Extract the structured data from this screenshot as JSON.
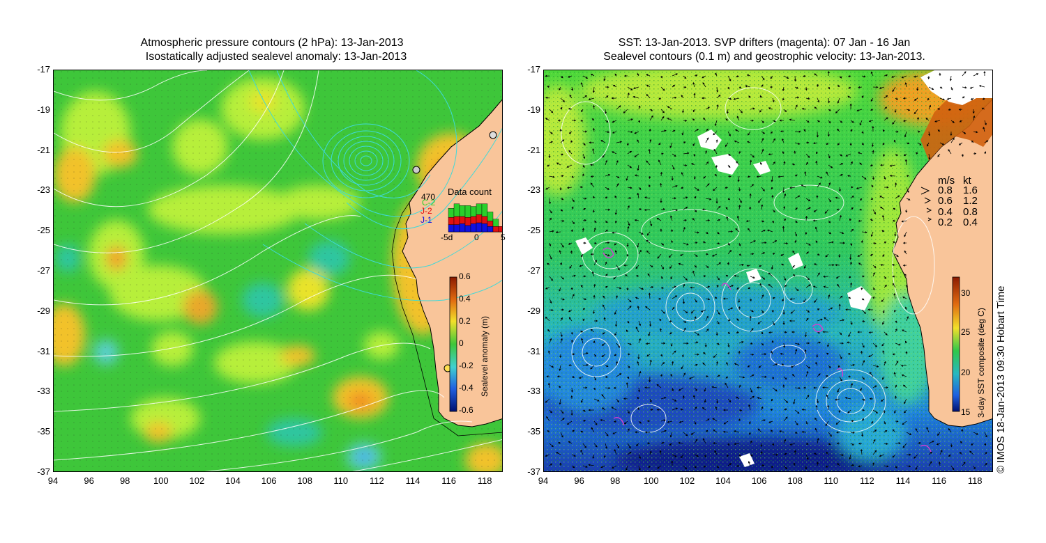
{
  "left_panel": {
    "title_line1": "Atmospheric pressure contours (2 hPa): 13-Jan-2013",
    "title_line2": "Isostatically adjusted sealevel anomaly: 13-Jan-2013",
    "colorbar": {
      "label": "Sealevel anomaly (m)",
      "ticks": [
        "0.6",
        "0.4",
        "0.2",
        "0",
        "-0.2",
        "-0.4",
        "-0.6"
      ],
      "range": [
        -0.6,
        0.6
      ]
    },
    "data_count": {
      "title": "Data count",
      "count": "470",
      "legend": [
        {
          "label": "C-2",
          "color": "#2ad02a"
        },
        {
          "label": "J-2",
          "color": "#e01010"
        },
        {
          "label": "J-1",
          "color": "#1010e0"
        }
      ],
      "axis_ticks": [
        "-5d",
        "0",
        "5"
      ],
      "days": [
        -5,
        -4,
        -3,
        -2,
        -1,
        0,
        1,
        2,
        3,
        4
      ],
      "j1": [
        8,
        8,
        9,
        7,
        9,
        10,
        9,
        6,
        0,
        0
      ],
      "j2": [
        8,
        9,
        8,
        9,
        8,
        9,
        8,
        6,
        6,
        6
      ],
      "c2": [
        10,
        14,
        12,
        13,
        11,
        12,
        14,
        10,
        8,
        0
      ]
    }
  },
  "right_panel": {
    "title_line1": "SST: 13-Jan-2013. SVP drifters (magenta): 07 Jan - 16 Jan",
    "title_line2": "Sealevel contours (0.1 m) and geostrophic velocity: 13-Jan-2013.",
    "colorbar": {
      "label": "3-day SST composite (deg C)",
      "ticks": [
        "30",
        "25",
        "20",
        "15"
      ],
      "range": [
        15,
        32
      ]
    },
    "velocity_legend": {
      "header_ms": "m/s",
      "header_kt": "kt",
      "rows": [
        {
          "ms": "0.8",
          "kt": "1.6"
        },
        {
          "ms": "0.6",
          "kt": "1.2"
        },
        {
          "ms": "0.4",
          "kt": "0.8"
        },
        {
          "ms": "0.2",
          "kt": "0.4"
        }
      ]
    }
  },
  "axes": {
    "y_ticks": [
      "-17",
      "-19",
      "-21",
      "-23",
      "-25",
      "-27",
      "-29",
      "-31",
      "-33",
      "-35",
      "-37"
    ],
    "x_ticks": [
      "94",
      "96",
      "98",
      "100",
      "102",
      "104",
      "106",
      "108",
      "110",
      "112",
      "114",
      "116",
      "118"
    ],
    "lon_range": [
      94,
      119
    ],
    "lat_range": [
      -37,
      -17
    ]
  },
  "credit": "© IMOS 18-Jan-2013 09:30 Hobart Time",
  "colors": {
    "land": "#f9c59a",
    "sla_green": "#3ec63a",
    "sst_green": "#2fc84a",
    "contour_white": "#ffffff",
    "contour_cyan": "#3fd9d9",
    "drifter_magenta": "#d040d0"
  }
}
